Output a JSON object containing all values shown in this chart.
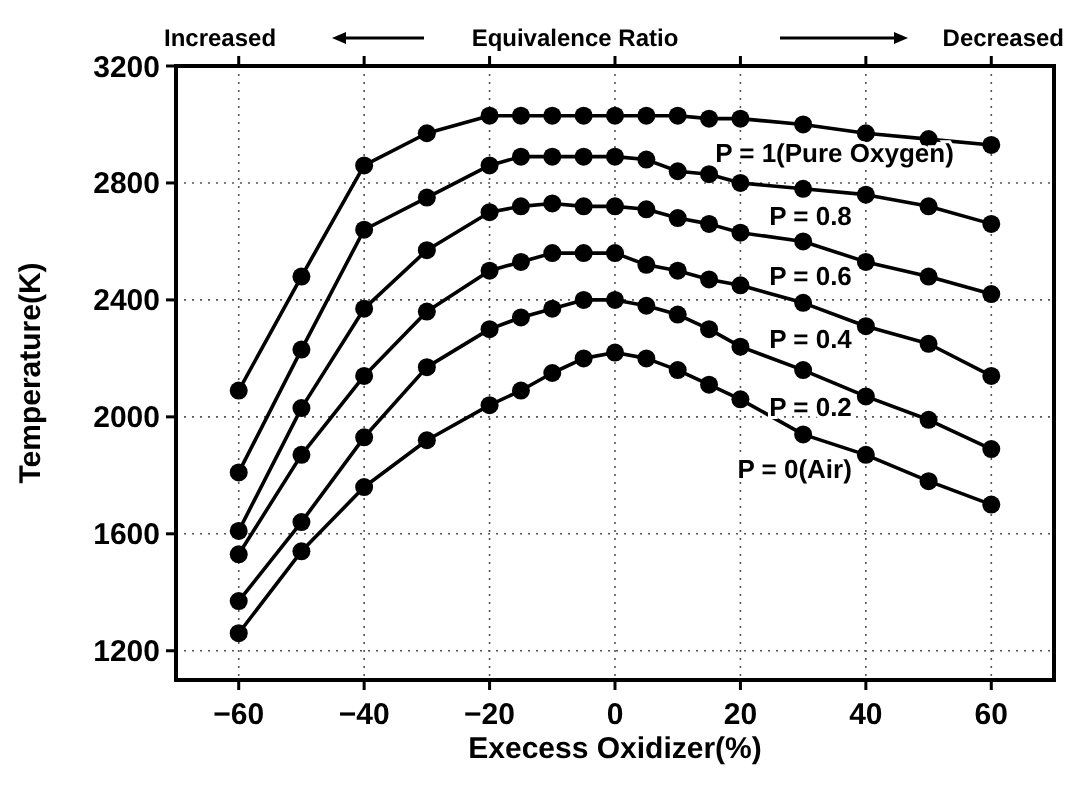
{
  "chart_data": {
    "type": "line",
    "title": "Equivalence Ratio",
    "xlabel": "Execess Oxidizer(%)",
    "ylabel": "Temperature(K)",
    "x": [
      -60,
      -50,
      -40,
      -30,
      -20,
      -15,
      -10,
      -5,
      0,
      5,
      10,
      15,
      20,
      30,
      40,
      50,
      60
    ],
    "series": [
      {
        "name": "P = 1(Pure Oxygen)",
        "color": "#000000",
        "values": [
          2090,
          2480,
          2860,
          2970,
          3030,
          3030,
          3030,
          3030,
          3030,
          3030,
          3030,
          3020,
          3020,
          3000,
          2970,
          2950,
          2930
        ]
      },
      {
        "name": "P = 0.8",
        "color": "#000000",
        "values": [
          1810,
          2230,
          2640,
          2750,
          2860,
          2890,
          2890,
          2890,
          2890,
          2880,
          2840,
          2830,
          2800,
          2780,
          2760,
          2720,
          2660
        ]
      },
      {
        "name": "P = 0.6",
        "color": "#000000",
        "values": [
          1610,
          2030,
          2370,
          2570,
          2700,
          2720,
          2730,
          2720,
          2720,
          2710,
          2680,
          2660,
          2630,
          2600,
          2530,
          2480,
          2420
        ]
      },
      {
        "name": "P = 0.4",
        "color": "#000000",
        "values": [
          1530,
          1870,
          2140,
          2360,
          2500,
          2530,
          2560,
          2560,
          2560,
          2520,
          2500,
          2470,
          2450,
          2390,
          2310,
          2250,
          2140
        ]
      },
      {
        "name": "P = 0.2",
        "color": "#000000",
        "values": [
          1370,
          1640,
          1930,
          2170,
          2300,
          2340,
          2370,
          2400,
          2400,
          2380,
          2350,
          2300,
          2240,
          2160,
          2070,
          1990,
          1890
        ]
      },
      {
        "name": "P = 0(Air)",
        "color": "#000000",
        "values": [
          1260,
          1540,
          1760,
          1920,
          2040,
          2090,
          2150,
          2200,
          2220,
          2200,
          2160,
          2110,
          2060,
          1940,
          1870,
          1780,
          1700
        ]
      }
    ],
    "annotations": [
      "Increased",
      "Decreased"
    ],
    "xlim": [
      -70,
      70
    ],
    "xticks": [
      -60,
      -40,
      -20,
      0,
      20,
      40,
      60
    ],
    "ylim": [
      1100,
      3200
    ],
    "yticks": [
      1200,
      1600,
      2000,
      2400,
      2800,
      3200
    ],
    "grid": true,
    "marker": "circle",
    "line_style": "solid"
  }
}
